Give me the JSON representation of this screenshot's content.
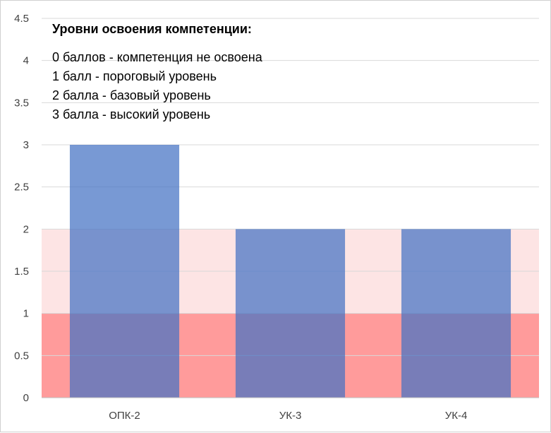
{
  "chart_data": {
    "type": "bar",
    "categories": [
      "ОПК-2",
      "УК-3",
      "УК-4"
    ],
    "series": [
      {
        "values": [
          3,
          2,
          2
        ],
        "color": "#4472c4"
      }
    ],
    "ylim": [
      0,
      4.5
    ],
    "yticks": [
      "0",
      "0.5",
      "1",
      "1.5",
      "2",
      "2.5",
      "3",
      "3.5",
      "4",
      "4.5"
    ],
    "grid": true,
    "background_bands": [
      {
        "from": 0,
        "to": 1,
        "color": "#ff9b9b"
      },
      {
        "from": 1,
        "to": 2,
        "color": "#fde4e4"
      }
    ],
    "annotation": {
      "title": "Уровни освоения компетенции:",
      "lines": [
        "0 баллов - компетенция не освоена",
        "1 балл - пороговый уровень",
        "2 балла - базовый уровень",
        "3 балла - высокий уровень"
      ]
    }
  }
}
